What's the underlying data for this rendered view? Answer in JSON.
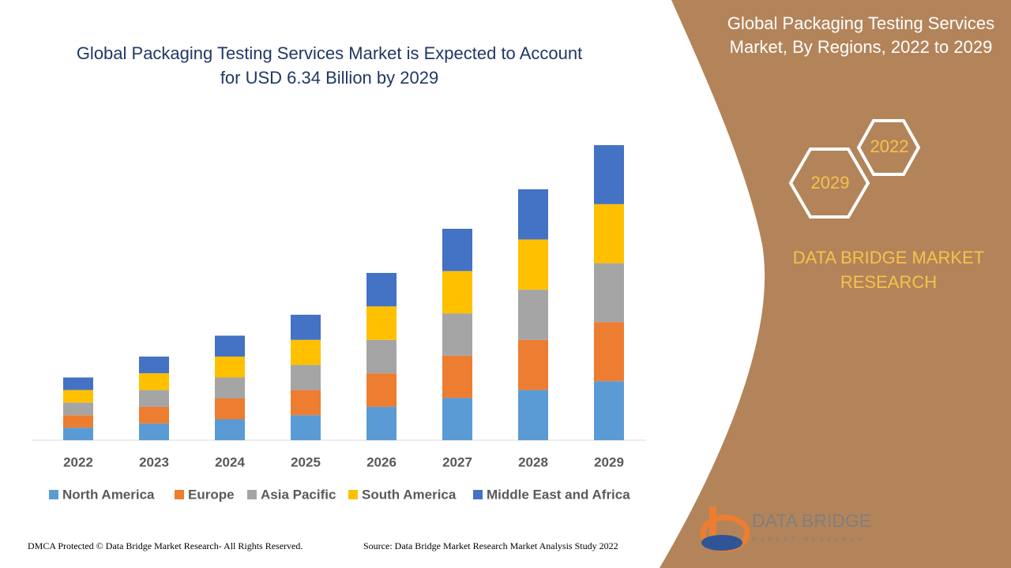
{
  "chart_data": {
    "type": "bar",
    "stacked": true,
    "title": "Global Packaging Testing Services Market is Expected to Account for USD  6.34 Billion by 2029",
    "categories": [
      "2022",
      "2023",
      "2024",
      "2025",
      "2026",
      "2027",
      "2028",
      "2029"
    ],
    "series": [
      {
        "name": "North America",
        "color": "#5b9bd5",
        "values": [
          0.27,
          0.36,
          0.45,
          0.54,
          0.72,
          0.91,
          1.08,
          1.27
        ]
      },
      {
        "name": "Europe",
        "color": "#ed7d31",
        "values": [
          0.27,
          0.36,
          0.45,
          0.54,
          0.72,
          0.91,
          1.08,
          1.27
        ]
      },
      {
        "name": "Asia Pacific",
        "color": "#a5a5a5",
        "values": [
          0.27,
          0.36,
          0.45,
          0.54,
          0.72,
          0.91,
          1.08,
          1.27
        ]
      },
      {
        "name": "South America",
        "color": "#ffc000",
        "values": [
          0.27,
          0.36,
          0.45,
          0.54,
          0.72,
          0.91,
          1.08,
          1.27
        ]
      },
      {
        "name": "Middle East and Africa",
        "color": "#4472c4",
        "values": [
          0.27,
          0.36,
          0.45,
          0.54,
          0.72,
          0.91,
          1.08,
          1.27
        ]
      }
    ],
    "source": "Source: Data Bridge Market Research Market Analysis Study 2022"
  },
  "panel": {
    "title": "Global Packaging Testing Services Market, By Regions, 2022 to 2029",
    "hexagons": [
      "2022",
      "2029"
    ],
    "brand": "DATA BRIDGE MARKET RESEARCH"
  },
  "logo": {
    "name": "DATA BRIDGE",
    "tagline": "MARKET RESEARCH"
  },
  "footer": {
    "copyright": "DMCA Protected © Data Bridge Market Research- All Rights Reserved."
  }
}
